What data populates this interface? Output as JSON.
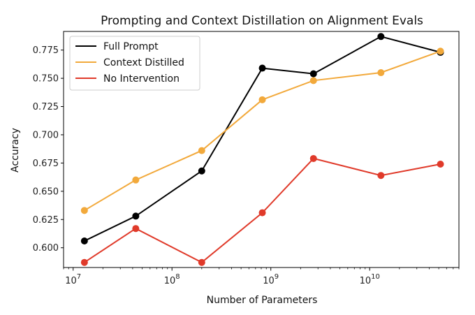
{
  "chart_data": {
    "type": "line",
    "title": "Prompting and Context Distillation on Alignment Evals",
    "xlabel": "Number of Parameters",
    "ylabel": "Accuracy",
    "xscale": "log",
    "xlim": [
      8000000.0,
      80000000000.0
    ],
    "ylim": [
      0.5825,
      0.7915
    ],
    "x": [
      13000000.0,
      43000000.0,
      200000000.0,
      820000000.0,
      2700000000.0,
      13000000000.0,
      52000000000.0
    ],
    "xticks": [
      {
        "value": 10000000.0,
        "label": "10^7",
        "base": "10",
        "exp": "7"
      },
      {
        "value": 100000000.0,
        "label": "10^8",
        "base": "10",
        "exp": "8"
      },
      {
        "value": 1000000000.0,
        "label": "10^9",
        "base": "10",
        "exp": "9"
      },
      {
        "value": 10000000000.0,
        "label": "10^10",
        "base": "10",
        "exp": "10"
      }
    ],
    "yticks": [
      0.6,
      0.625,
      0.65,
      0.675,
      0.7,
      0.725,
      0.75,
      0.775
    ],
    "ytick_labels": [
      "0.600",
      "0.625",
      "0.650",
      "0.675",
      "0.700",
      "0.725",
      "0.750",
      "0.775"
    ],
    "grid": false,
    "legend_position": "top-left",
    "series": [
      {
        "name": "Full Prompt",
        "color": "#000000",
        "values": [
          0.606,
          0.628,
          0.668,
          0.759,
          0.754,
          0.787,
          0.773
        ]
      },
      {
        "name": "Context Distilled",
        "color": "#f2a93b",
        "values": [
          0.633,
          0.66,
          0.686,
          0.731,
          0.748,
          0.755,
          0.774
        ]
      },
      {
        "name": "No Intervention",
        "color": "#e03a2a",
        "values": [
          0.587,
          0.617,
          0.587,
          0.631,
          0.679,
          0.664,
          0.674
        ]
      }
    ]
  }
}
